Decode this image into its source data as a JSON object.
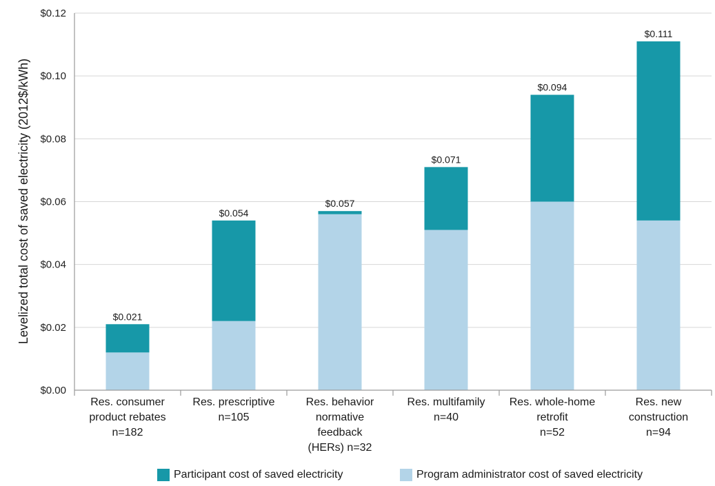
{
  "chart_data": {
    "type": "bar",
    "stacked": true,
    "ylabel": "Levelized total cost of saved electricity (2012$/kWh)",
    "ylim": [
      0,
      0.12
    ],
    "yticks": [
      "$0.00",
      "$0.02",
      "$0.04",
      "$0.06",
      "$0.08",
      "$0.10",
      "$0.12"
    ],
    "ytick_values": [
      0,
      0.02,
      0.04,
      0.06,
      0.08,
      0.1,
      0.12
    ],
    "grid": true,
    "legend_position": "bottom",
    "categories": [
      [
        "Res. consumer",
        "product rebates",
        "n=182"
      ],
      [
        "Res. prescriptive",
        "n=105"
      ],
      [
        "Res. behavior",
        "normative",
        "feedback",
        "(HERs) n=32"
      ],
      [
        "Res. multifamily",
        "n=40"
      ],
      [
        "Res. whole-home",
        "retrofit",
        "n=52"
      ],
      [
        "Res. new",
        "construction",
        "n=94"
      ]
    ],
    "series": [
      {
        "name": "Program administrator cost of saved electricity",
        "color": "#b3d4e8",
        "values": [
          0.012,
          0.022,
          0.056,
          0.051,
          0.06,
          0.054
        ]
      },
      {
        "name": "Participant cost of saved electricity",
        "color": "#1798a8",
        "values": [
          0.009,
          0.032,
          0.001,
          0.02,
          0.034,
          0.057
        ]
      }
    ],
    "totals": [
      0.021,
      0.054,
      0.057,
      0.071,
      0.094,
      0.111
    ],
    "total_labels": [
      "$0.021",
      "$0.054",
      "$0.057",
      "$0.071",
      "$0.094",
      "$0.111"
    ]
  },
  "legend": {
    "participant_label": "Participant cost of saved electricity",
    "admin_label": "Program administrator cost of saved electricity"
  }
}
